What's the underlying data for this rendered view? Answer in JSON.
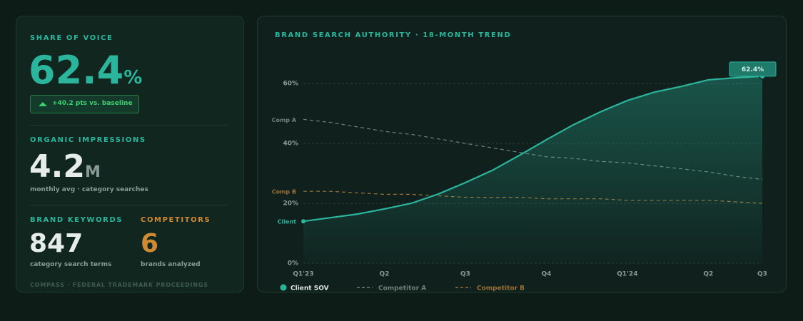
{
  "kpis": {
    "share_of_voice": {
      "label": "SHARE OF VOICE",
      "value": "62.4",
      "unit": "%",
      "badge": "+40.2 pts vs. baseline"
    },
    "impressions": {
      "label": "ORGANIC IMPRESSIONS",
      "value": "4.2",
      "unit": "M",
      "note": "monthly avg · category searches"
    },
    "keywords": {
      "label": "BRAND KEYWORDS",
      "value": "847",
      "note": "category search terms"
    },
    "competitors": {
      "label": "COMPETITORS",
      "value": "6",
      "note": "brands analyzed"
    },
    "footer": "COMPASS · FEDERAL TRADEMARK PROCEEDINGS"
  },
  "chart_data": {
    "type": "line",
    "title": "BRAND SEARCH AUTHORITY · 18-MONTH TREND",
    "categories": [
      "Q1'23",
      null,
      null,
      "Q2",
      null,
      null,
      "Q3",
      null,
      null,
      "Q4",
      null,
      null,
      "Q1'24",
      null,
      null,
      "Q2",
      null,
      "Q3"
    ],
    "ylim": [
      0,
      70
    ],
    "yticks": [
      {
        "value": 0,
        "label": "0%"
      },
      {
        "value": 20,
        "label": "20%"
      },
      {
        "value": 40,
        "label": "40%"
      },
      {
        "value": 60,
        "label": "60%"
      }
    ],
    "grid": true,
    "series": [
      {
        "name": "Client SOV",
        "label": "Client",
        "color": "#2bb59d",
        "area": true,
        "values": [
          14.0,
          15.2,
          16.4,
          18.1,
          20.0,
          23.1,
          26.9,
          31.0,
          36.0,
          41.2,
          46.2,
          50.5,
          54.3,
          57.1,
          59.0,
          61.2,
          61.9,
          62.4
        ],
        "value_labels": [
          null,
          null,
          null,
          null,
          null,
          null,
          null,
          null,
          null,
          null,
          null,
          null,
          null,
          null,
          null,
          null,
          null,
          "62.4%"
        ]
      },
      {
        "name": "Competitor A",
        "label": "Comp A",
        "color": "#6f817c",
        "dashed": true,
        "values": [
          48,
          47,
          45.5,
          44,
          43,
          41.5,
          40,
          38.5,
          37,
          35.5,
          35,
          34,
          33.5,
          32.5,
          31.5,
          30.5,
          29,
          28
        ]
      },
      {
        "name": "Competitor B",
        "label": "Comp B",
        "color": "#9a7038",
        "dashed": true,
        "values": [
          24,
          24,
          23.5,
          23,
          23,
          22.5,
          22,
          22,
          22,
          21.5,
          21.5,
          21.5,
          21,
          21,
          21,
          21,
          20.5,
          20
        ]
      }
    ]
  }
}
